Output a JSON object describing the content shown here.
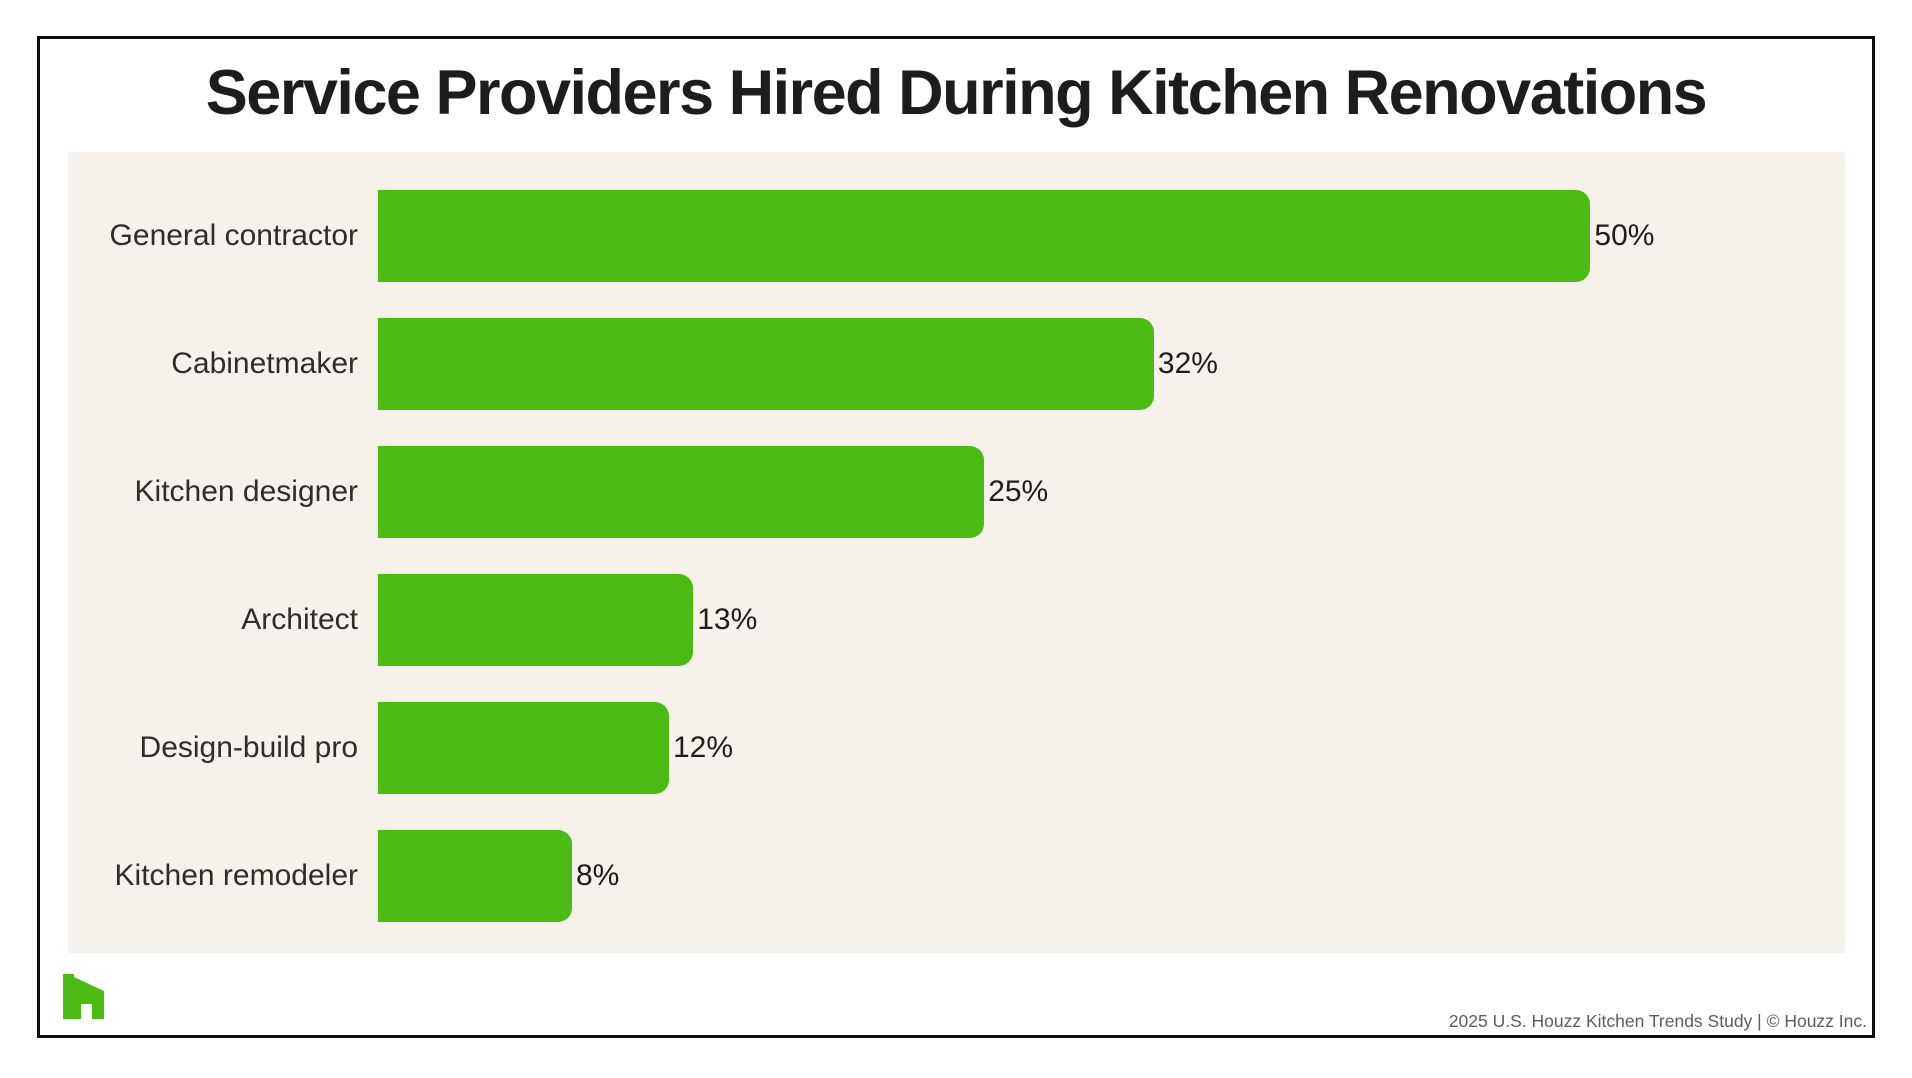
{
  "title": "Service Providers Hired During Kitchen Renovations",
  "chart_data": {
    "type": "bar",
    "orientation": "horizontal",
    "title": "Service Providers Hired During Kitchen Renovations",
    "categories": [
      "General contractor",
      "Cabinetmaker",
      "Kitchen designer",
      "Architect",
      "Design-build pro",
      "Kitchen remodeler"
    ],
    "values": [
      50,
      32,
      25,
      13,
      12,
      8
    ],
    "value_labels": [
      "50%",
      "32%",
      "25%",
      "13%",
      "12%",
      "8%"
    ],
    "xlabel": "",
    "ylabel": "",
    "xlim": [
      0,
      60.5
    ],
    "grid": false,
    "legend": null,
    "bar_color": "#4CBC15",
    "panel_background": "#F6F1EA"
  },
  "colors": {
    "accent_green": "#4CBC15",
    "panel_background": "#F6F1EA",
    "title_text": "#1d1d1d",
    "label_text": "#2d2d2d",
    "footer_text": "#5c5c5c",
    "frame_border": "#0d0d0d"
  },
  "logo": {
    "name": "houzz-logo",
    "color": "#4CBC15"
  },
  "footer": {
    "text": "2025 U.S. Houzz Kitchen Trends Study  |  © Houzz Inc."
  }
}
